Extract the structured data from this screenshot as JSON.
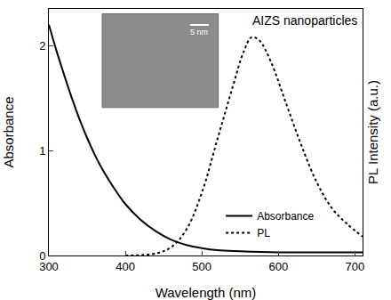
{
  "chart_data": {
    "type": "line",
    "x_label": "Wavelength (nm)",
    "y_label": "Absorbance",
    "y2_label": "PL Intensity (a.u.)",
    "annotations": [
      "AIZS nanoparticles",
      "5 nm"
    ],
    "xlim": [
      300,
      710
    ],
    "xticks": [
      300,
      400,
      500,
      600,
      700
    ],
    "ylim": [
      0,
      2.35
    ],
    "yticks": [
      0,
      1,
      2
    ],
    "y2lim": [
      0,
      2.35
    ],
    "y2ticks": [],
    "legend": "lower right",
    "grid": false,
    "series": [
      {
        "name": "Absorbance",
        "color": "#000000",
        "line_style": "solid",
        "x": [
          300,
          310,
          320,
          330,
          340,
          350,
          360,
          370,
          380,
          390,
          400,
          420,
          440,
          460,
          480,
          500,
          520,
          550,
          600,
          650,
          710
        ],
        "values": [
          2.2,
          1.95,
          1.72,
          1.5,
          1.3,
          1.12,
          0.96,
          0.82,
          0.7,
          0.59,
          0.49,
          0.34,
          0.23,
          0.15,
          0.1,
          0.07,
          0.05,
          0.04,
          0.03,
          0.03,
          0.03
        ]
      },
      {
        "name": "PL",
        "color": "#000000",
        "line_style": "dotted",
        "axis": "y2",
        "x": [
          400,
          440,
          460,
          480,
          500,
          520,
          540,
          555,
          565,
          575,
          590,
          610,
          630,
          650,
          670,
          690,
          710
        ],
        "values": [
          0,
          0.02,
          0.08,
          0.25,
          0.6,
          1.1,
          1.6,
          1.95,
          2.08,
          2.05,
          1.85,
          1.45,
          1.05,
          0.7,
          0.45,
          0.3,
          0.18
        ]
      }
    ]
  }
}
